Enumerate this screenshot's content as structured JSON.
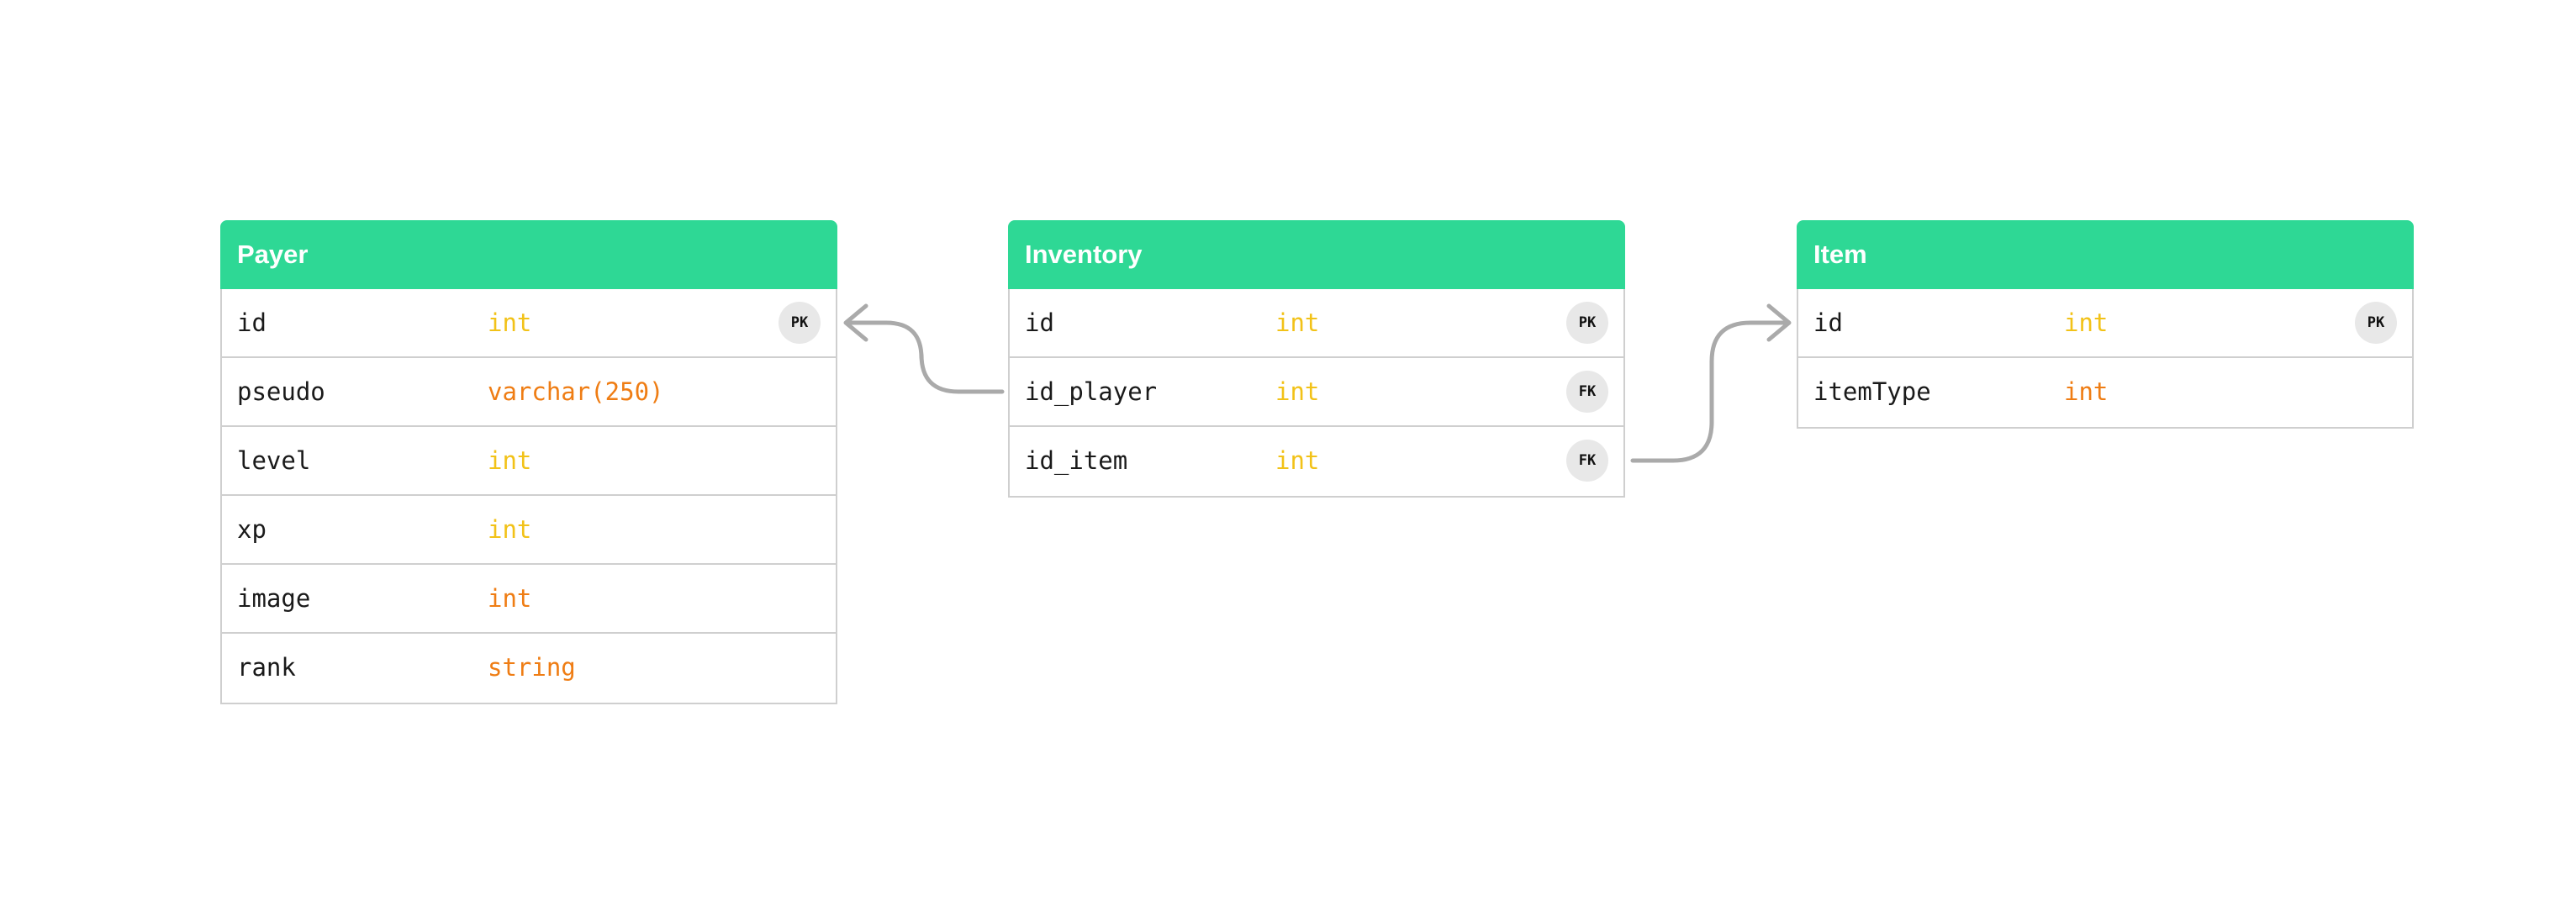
{
  "colors": {
    "header_bg": "#2ed895",
    "header_text": "#ffffff",
    "type_int": "#f2c218",
    "type_other": "#ef7d14",
    "connector": "#aaaaaa",
    "badge_bg": "#e8e8e8",
    "border": "#cfcfcf"
  },
  "tables": {
    "payer": {
      "title": "Payer",
      "columns": [
        {
          "name": "id",
          "type": "int",
          "key": "PK"
        },
        {
          "name": "pseudo",
          "type": "varchar(250)",
          "key": ""
        },
        {
          "name": "level",
          "type": "int",
          "key": ""
        },
        {
          "name": "xp",
          "type": "int",
          "key": ""
        },
        {
          "name": "image",
          "type": "int",
          "key": ""
        },
        {
          "name": "rank",
          "type": "string",
          "key": ""
        }
      ]
    },
    "inventory": {
      "title": "Inventory",
      "columns": [
        {
          "name": "id",
          "type": "int",
          "key": "PK"
        },
        {
          "name": "id_player",
          "type": "int",
          "key": "FK"
        },
        {
          "name": "id_item",
          "type": "int",
          "key": "FK"
        }
      ]
    },
    "item": {
      "title": "Item",
      "columns": [
        {
          "name": "id",
          "type": "int",
          "key": "PK"
        },
        {
          "name": "itemType",
          "type": "int",
          "key": ""
        }
      ]
    }
  },
  "relations": [
    {
      "from": "inventory.id_player",
      "to": "payer.id"
    },
    {
      "from": "inventory.id_item",
      "to": "item.id"
    }
  ]
}
